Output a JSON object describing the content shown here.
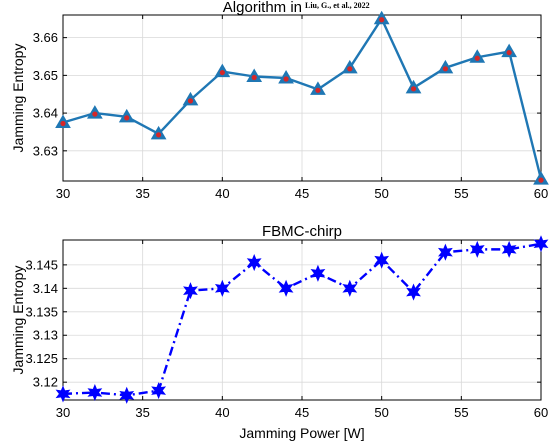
{
  "chart_data": [
    {
      "type": "line",
      "title": "Algorithm in",
      "title_reference": "Liu, G., et al., 2022",
      "xlabel": "",
      "ylabel": "Jamming Entropy",
      "xlim": [
        30,
        60
      ],
      "ylim": [
        3.622,
        3.666
      ],
      "grid": true,
      "xticks": [
        30,
        35,
        40,
        45,
        50,
        55,
        60
      ],
      "yticks": [
        3.63,
        3.64,
        3.65,
        3.66
      ],
      "ytick_labels": [
        "3.63",
        "3.64",
        "3.65",
        "3.66"
      ],
      "line_color": "#1f77b4",
      "marker": "triangle",
      "marker_color": "#1f77b4",
      "marker_dot_color": "#d62728",
      "line_style": "solid",
      "series": [
        {
          "x": [
            30,
            32,
            34,
            36,
            38,
            40,
            42,
            44,
            46,
            48,
            50,
            52,
            54,
            56,
            58,
            60
          ],
          "y": [
            3.6375,
            3.64,
            3.639,
            3.6345,
            3.6435,
            3.651,
            3.6497,
            3.6493,
            3.6463,
            3.652,
            3.665,
            3.6467,
            3.652,
            3.6548,
            3.6563,
            3.6225
          ]
        }
      ]
    },
    {
      "type": "line",
      "title": "FBMC-chirp",
      "xlabel": "Jamming Power [W]",
      "ylabel": "Jamming Entropy",
      "xlim": [
        30,
        60
      ],
      "ylim": [
        3.1162,
        3.1503
      ],
      "grid": true,
      "xticks": [
        30,
        35,
        40,
        45,
        50,
        55,
        60
      ],
      "yticks": [
        3.12,
        3.125,
        3.13,
        3.135,
        3.14,
        3.145
      ],
      "ytick_labels": [
        "3.12",
        "3.125",
        "3.13",
        "3.135",
        "3.14",
        "3.145"
      ],
      "line_color": "#0000ff",
      "marker": "hexagram",
      "marker_color": "#0000ff",
      "line_style": "dash-dot",
      "series": [
        {
          "x": [
            30,
            32,
            34,
            36,
            38,
            40,
            42,
            44,
            46,
            48,
            50,
            52,
            54,
            56,
            58,
            60
          ],
          "y": [
            3.1175,
            3.1178,
            3.1172,
            3.1182,
            3.1395,
            3.14,
            3.1455,
            3.14,
            3.1432,
            3.14,
            3.146,
            3.1392,
            3.1477,
            3.1483,
            3.1483,
            3.1495
          ]
        }
      ]
    }
  ]
}
